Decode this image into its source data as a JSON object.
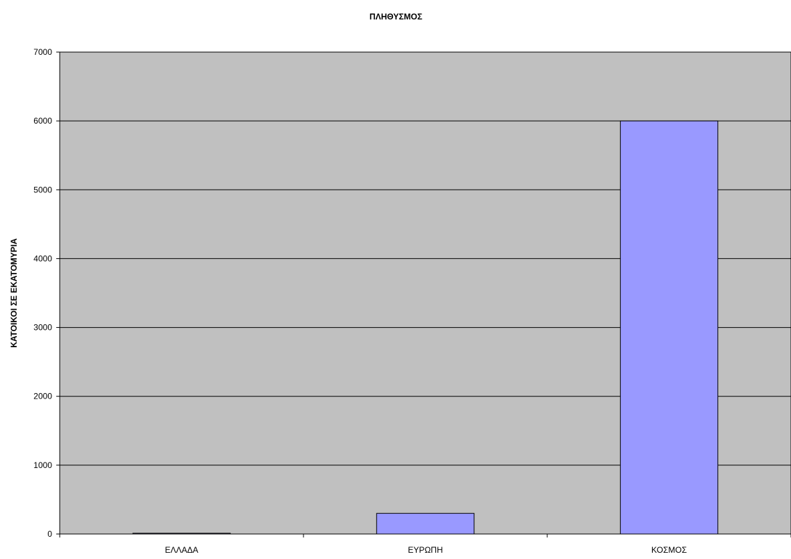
{
  "chart_data": {
    "type": "bar",
    "title": "ΠΛΗΘΥΣΜΟΣ",
    "xlabel": "",
    "ylabel": "ΚΑΤΟΙΚΟΙ ΣΕ ΕΚΑΤΟΜΥΡΙΑ",
    "categories": [
      "ΕΛΛΑΔΑ",
      "ΕΥΡΩΠΗ",
      "ΚΟΣΜΟΣ"
    ],
    "values": [
      11,
      300,
      6000
    ],
    "ylim": [
      0,
      7000
    ],
    "yticks": [
      "0",
      "1000",
      "2000",
      "3000",
      "4000",
      "5000",
      "6000",
      "7000"
    ],
    "grid": true,
    "legend": "none",
    "colors": {
      "plot_background": "#c0c0c0",
      "bar_fill": "#9999ff",
      "bar_stroke": "#000000",
      "gridline": "#000000"
    }
  }
}
